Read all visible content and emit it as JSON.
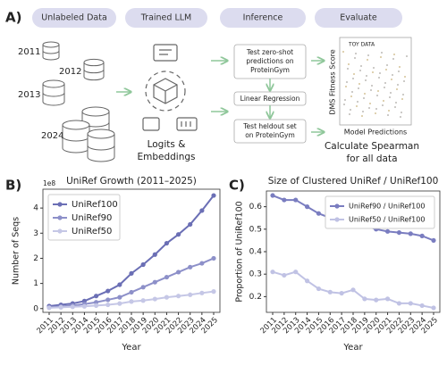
{
  "diagram": {
    "panel_label": "A)",
    "stages": [
      "Unlabeled Data",
      "Trained LLM",
      "Inference",
      "Evaluate"
    ],
    "years": [
      "2011",
      "2012",
      "2013",
      "2024"
    ],
    "llm_output": [
      "Logits &",
      "Embeddings"
    ],
    "inference": [
      [
        "Test zero-shot",
        "predictions on",
        "ProteinGym"
      ],
      [
        "Linear Regression"
      ],
      [
        "Test heldout set",
        "on ProteinGym"
      ]
    ],
    "evaluate": {
      "toy_label": "TOY DATA",
      "y_label": "DMS Fitness Score",
      "x_label": "Model Predictions",
      "caption": [
        "Calculate Spearman",
        "for all data"
      ]
    }
  },
  "chart_data": [
    {
      "type": "line",
      "panel_label": "B)",
      "title": "UniRef Growth (2011–2025)",
      "x_label": "Year",
      "y_label": "Number of Seqs",
      "y_offset_label": "1e8",
      "categories": [
        "2011",
        "2012",
        "2013",
        "2014",
        "2015",
        "2016",
        "2017",
        "2018",
        "2019",
        "2020",
        "2021",
        "2022",
        "2023",
        "2024",
        "2025"
      ],
      "series": [
        {
          "name": "UniRef100",
          "color": "#6b6fb5",
          "values": [
            0.1,
            0.15,
            0.2,
            0.3,
            0.5,
            0.7,
            0.95,
            1.4,
            1.75,
            2.15,
            2.6,
            2.95,
            3.35,
            3.9,
            4.5
          ]
        },
        {
          "name": "UniRef90",
          "color": "#8d90c9",
          "values": [
            0.05,
            0.08,
            0.12,
            0.18,
            0.25,
            0.35,
            0.45,
            0.65,
            0.85,
            1.05,
            1.25,
            1.45,
            1.65,
            1.8,
            2.0
          ]
        },
        {
          "name": "UniRef50",
          "color": "#c5c7e6",
          "values": [
            0.03,
            0.05,
            0.07,
            0.09,
            0.12,
            0.15,
            0.2,
            0.28,
            0.32,
            0.38,
            0.45,
            0.5,
            0.55,
            0.62,
            0.68
          ]
        }
      ],
      "ylim": [
        -0.15,
        4.75
      ],
      "yticks": [
        0,
        1,
        2,
        3,
        4
      ],
      "grid": false,
      "legend": "upper left"
    },
    {
      "type": "line",
      "panel_label": "C)",
      "title": "Size of Clustered UniRef / UniRef100",
      "x_label": "Year",
      "y_label": "Proportion of UniRef100",
      "categories": [
        "2011",
        "2012",
        "2013",
        "2014",
        "2015",
        "2016",
        "2017",
        "2018",
        "2019",
        "2020",
        "2021",
        "2022",
        "2023",
        "2024",
        "2025"
      ],
      "series": [
        {
          "name": "UniRef90 / UniRef100",
          "color": "#7a7dc0",
          "values": [
            0.65,
            0.63,
            0.63,
            0.6,
            0.57,
            0.55,
            0.53,
            0.52,
            0.515,
            0.5,
            0.49,
            0.485,
            0.48,
            0.47,
            0.45
          ]
        },
        {
          "name": "UniRef50 / UniRef100",
          "color": "#c0c2e4",
          "values": [
            0.31,
            0.295,
            0.31,
            0.27,
            0.235,
            0.22,
            0.215,
            0.23,
            0.19,
            0.185,
            0.19,
            0.17,
            0.17,
            0.16,
            0.15
          ]
        }
      ],
      "ylim": [
        0.13,
        0.67
      ],
      "yticks": [
        0.2,
        0.3,
        0.4,
        0.5,
        0.6
      ],
      "grid": false,
      "legend": "upper right"
    }
  ]
}
